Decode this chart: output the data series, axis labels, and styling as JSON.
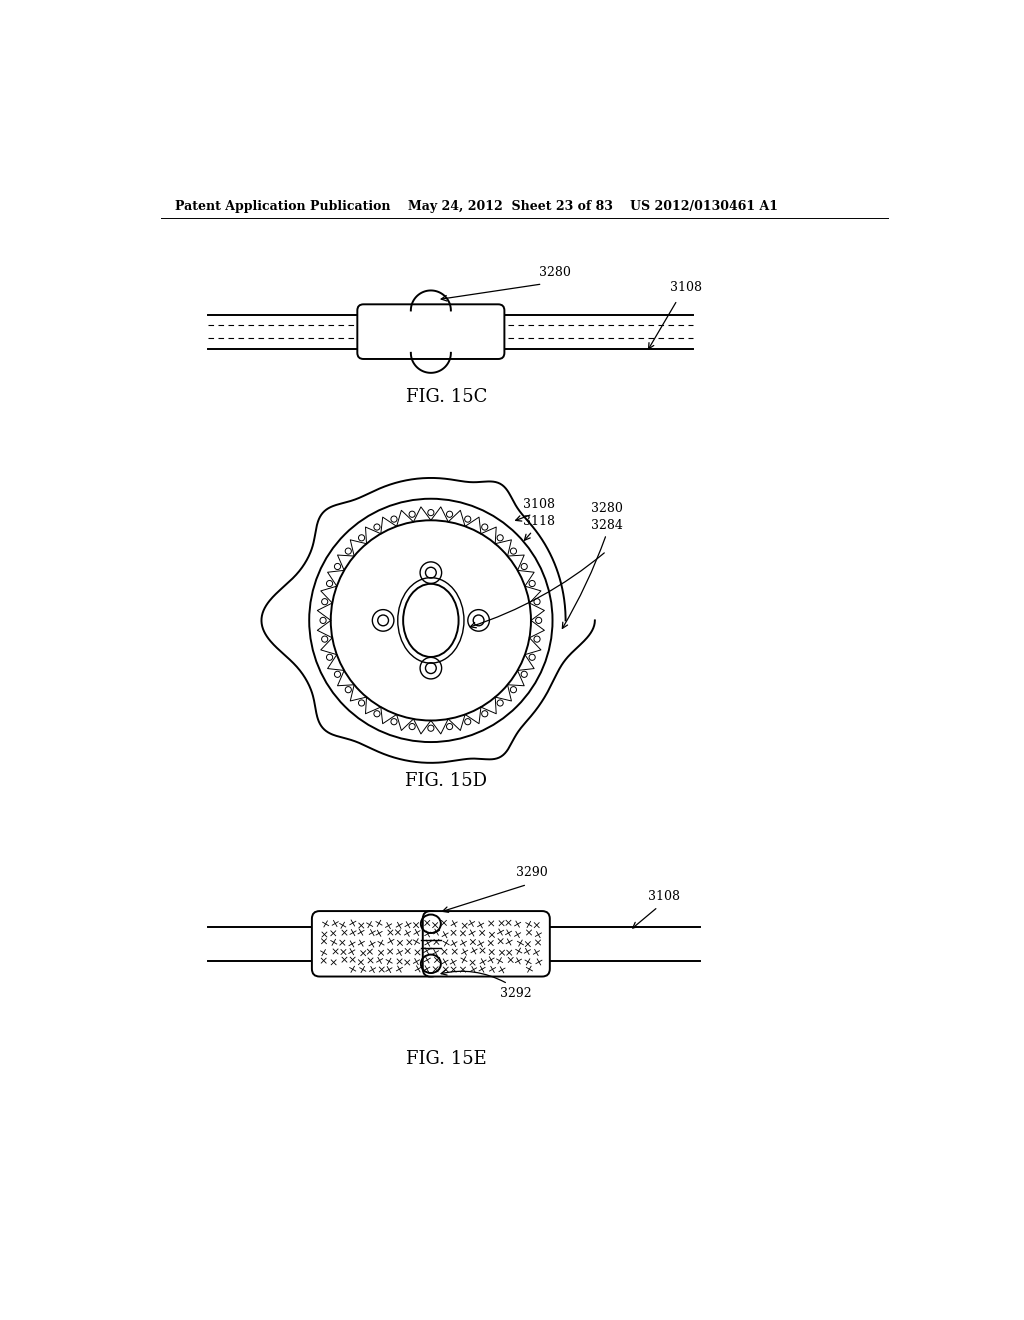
{
  "header_left": "Patent Application Publication",
  "header_mid": "May 24, 2012  Sheet 23 of 83",
  "header_right": "US 2012/0130461 A1",
  "fig15c_label": "FIG. 15C",
  "fig15d_label": "FIG. 15D",
  "fig15e_label": "FIG. 15E",
  "labels": {
    "3280_15c": "3280",
    "3108_15c": "3108",
    "3108_15d": "3108",
    "3118_15d": "3118",
    "3280_15d": "3280",
    "3284_15d": "3284",
    "3290_15e": "3290",
    "3108_15e": "3108",
    "3292_15e": "3292"
  },
  "bg_color": "#ffffff",
  "line_color": "#000000",
  "font_size_header": 9,
  "font_size_label": 9,
  "font_size_fig": 13
}
